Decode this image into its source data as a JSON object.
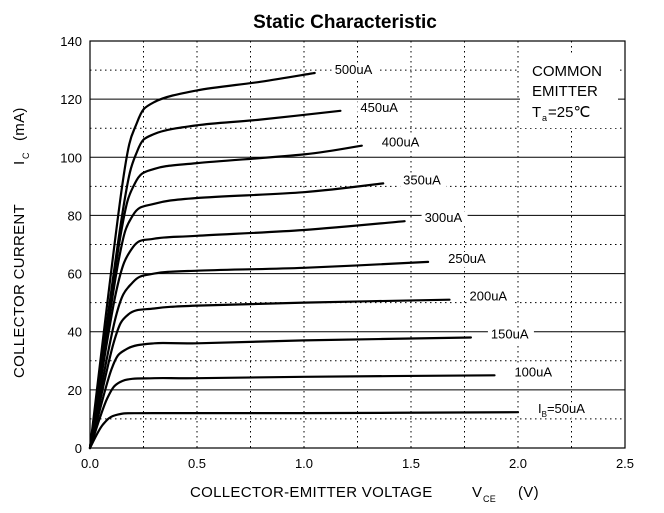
{
  "chart_data": {
    "type": "line",
    "title": "Static Characteristic",
    "xlabel": {
      "main": "COLLECTOR-EMITTER VOLTAGE",
      "symbol": "V",
      "subscript": "CE",
      "unit": "(V)"
    },
    "ylabel": {
      "main": "COLLECTOR CURRENT",
      "symbol": "I",
      "subscript": "C",
      "unit": "(mA)"
    },
    "xlim": [
      0,
      2.5
    ],
    "ylim": [
      0,
      140
    ],
    "xticks": [
      "0.0",
      "0.5",
      "1.0",
      "1.5",
      "2.0",
      "2.5"
    ],
    "yticks": [
      "0",
      "20",
      "40",
      "60",
      "80",
      "100",
      "120",
      "140"
    ],
    "grid": {
      "major": "solid",
      "minor": "dotted"
    },
    "annotation": {
      "line1": "COMMON",
      "line2": "EMITTER",
      "temp_symbol": "T",
      "temp_subscript": "a",
      "temp_value": "=25℃"
    },
    "series": [
      {
        "name": "500uA",
        "points": [
          [
            0,
            0
          ],
          [
            0.15,
            90
          ],
          [
            0.22,
            112
          ],
          [
            0.3,
            119
          ],
          [
            0.5,
            123
          ],
          [
            0.8,
            126
          ],
          [
            1.05,
            129
          ]
        ]
      },
      {
        "name": "450uA",
        "points": [
          [
            0,
            0
          ],
          [
            0.15,
            80
          ],
          [
            0.22,
            102
          ],
          [
            0.3,
            108
          ],
          [
            0.5,
            111
          ],
          [
            0.8,
            113
          ],
          [
            1.17,
            116
          ]
        ]
      },
      {
        "name": "400uA",
        "points": [
          [
            0,
            0
          ],
          [
            0.14,
            72
          ],
          [
            0.21,
            91
          ],
          [
            0.3,
            96
          ],
          [
            0.5,
            98
          ],
          [
            1.0,
            101
          ],
          [
            1.27,
            104
          ]
        ]
      },
      {
        "name": "350uA",
        "points": [
          [
            0,
            0
          ],
          [
            0.13,
            63
          ],
          [
            0.2,
            80
          ],
          [
            0.3,
            84
          ],
          [
            0.5,
            86
          ],
          [
            1.0,
            88
          ],
          [
            1.37,
            91
          ]
        ]
      },
      {
        "name": "300uA",
        "points": [
          [
            0,
            0
          ],
          [
            0.12,
            53
          ],
          [
            0.2,
            69
          ],
          [
            0.3,
            72
          ],
          [
            0.5,
            73
          ],
          [
            1.0,
            75
          ],
          [
            1.47,
            78
          ]
        ]
      },
      {
        "name": "250uA",
        "points": [
          [
            0,
            0
          ],
          [
            0.12,
            45
          ],
          [
            0.2,
            57
          ],
          [
            0.3,
            60
          ],
          [
            0.5,
            61
          ],
          [
            1.0,
            62
          ],
          [
            1.58,
            64
          ]
        ]
      },
      {
        "name": "200uA",
        "points": [
          [
            0,
            0
          ],
          [
            0.11,
            36
          ],
          [
            0.18,
            46
          ],
          [
            0.3,
            48
          ],
          [
            0.5,
            49
          ],
          [
            1.0,
            50
          ],
          [
            1.68,
            51
          ]
        ]
      },
      {
        "name": "150uA",
        "points": [
          [
            0,
            0
          ],
          [
            0.1,
            27
          ],
          [
            0.17,
            34
          ],
          [
            0.3,
            36
          ],
          [
            0.5,
            36
          ],
          [
            1.0,
            37
          ],
          [
            1.78,
            38
          ]
        ]
      },
      {
        "name": "100uA",
        "points": [
          [
            0,
            0
          ],
          [
            0.08,
            17
          ],
          [
            0.15,
            23
          ],
          [
            0.3,
            24
          ],
          [
            0.5,
            24
          ],
          [
            1.0,
            24.5
          ],
          [
            1.89,
            25
          ]
        ]
      },
      {
        "name": "50uA",
        "labelPrefix": "I",
        "labelSubscript": "B",
        "labelSuffix": "=50uA",
        "points": [
          [
            0,
            0
          ],
          [
            0.06,
            8
          ],
          [
            0.13,
            11.5
          ],
          [
            0.3,
            12
          ],
          [
            1.0,
            12
          ],
          [
            2.0,
            12.3
          ]
        ]
      }
    ]
  }
}
